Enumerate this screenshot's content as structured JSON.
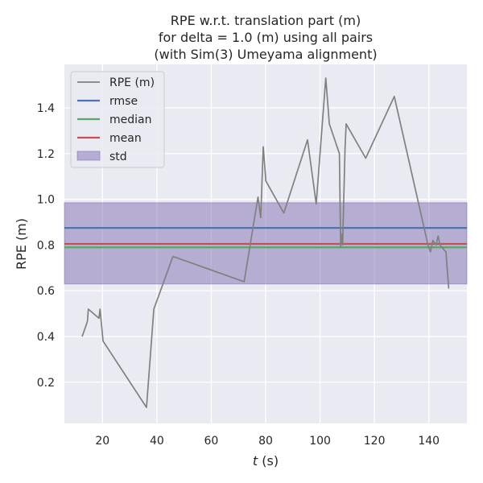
{
  "chart_data": {
    "type": "line",
    "title": "RPE w.r.t. translation part (m)\nfor delta = 1.0 (m) using all pairs\n(with Sim(3) Umeyama alignment)",
    "xlabel_var": "t",
    "xlabel_unit": " (s)",
    "ylabel": "RPE (m)",
    "xlim": [
      6,
      154
    ],
    "ylim": [
      0.02,
      1.59
    ],
    "xticks": [
      20,
      40,
      60,
      80,
      100,
      120,
      140
    ],
    "yticks": [
      0.2,
      0.4,
      0.6,
      0.8,
      1.0,
      1.2,
      1.4
    ],
    "background": "#eaeaf2",
    "grid": true,
    "legend_position": "top-left",
    "series": [
      {
        "name": "RPE (m)",
        "color": "#808080",
        "x": [
          12.5,
          14.3,
          14.5,
          14.8,
          18.7,
          19.1,
          19.5,
          19.9,
          20.2,
          36.2,
          38.9,
          45.9,
          72.1,
          77.2,
          78.2,
          79.1,
          80.1,
          86.7,
          95.4,
          98.6,
          102.1,
          103.4,
          107.1,
          107.6,
          107.8,
          108.3,
          109.2,
          109.6,
          116.8,
          127.3,
          139.7,
          140.6,
          141.5,
          142.7,
          143.4,
          144.1,
          144.8,
          146.3,
          147.3
        ],
        "y": [
          0.4,
          0.46,
          0.47,
          0.52,
          0.48,
          0.52,
          0.47,
          0.42,
          0.38,
          0.09,
          0.52,
          0.75,
          0.64,
          1.01,
          0.92,
          1.23,
          1.08,
          0.94,
          1.26,
          0.98,
          1.53,
          1.33,
          1.2,
          0.79,
          0.85,
          0.8,
          1.22,
          1.33,
          1.18,
          1.45,
          0.8,
          0.77,
          0.82,
          0.8,
          0.84,
          0.8,
          0.79,
          0.77,
          0.61
        ]
      }
    ],
    "stats": {
      "rmse": {
        "name": "rmse",
        "value": 0.875,
        "color": "#4c72b0"
      },
      "median": {
        "name": "median",
        "value": 0.79,
        "color": "#55a868"
      },
      "mean": {
        "name": "mean",
        "value": 0.805,
        "color": "#c44e52"
      },
      "std": {
        "name": "std",
        "lower": 0.63,
        "upper": 0.985,
        "color": "#8172b2"
      }
    },
    "legend": [
      "RPE (m)",
      "rmse",
      "median",
      "mean",
      "std"
    ]
  }
}
